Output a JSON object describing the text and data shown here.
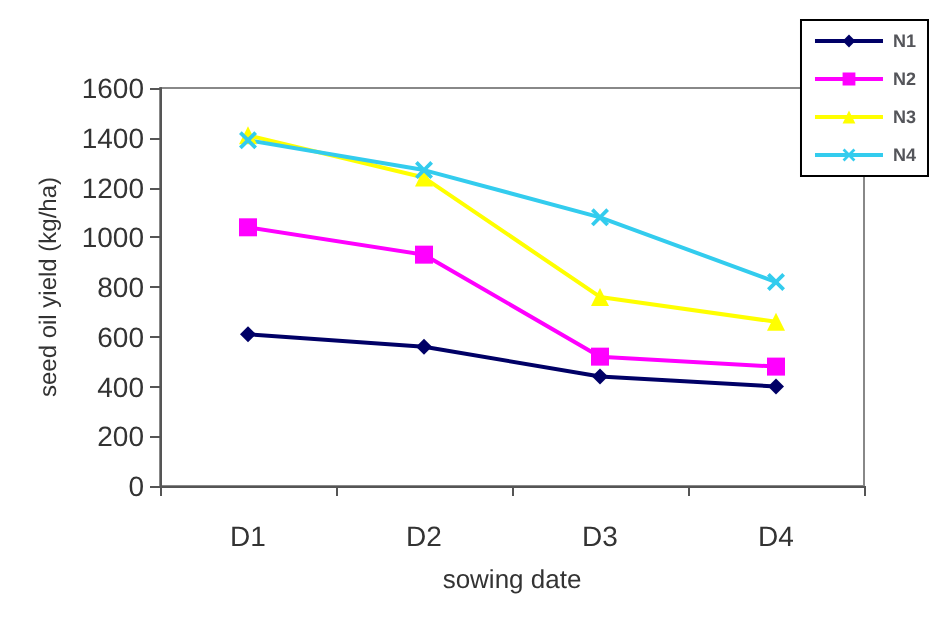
{
  "chart_data": {
    "type": "line",
    "xlabel": "sowing date",
    "ylabel": "seed oil yield (kg/ha)",
    "categories": [
      "D1",
      "D2",
      "D3",
      "D4"
    ],
    "series": [
      {
        "name": "N1",
        "color": "#000066",
        "marker": "diamond",
        "values": [
          610,
          560,
          440,
          400
        ]
      },
      {
        "name": "N2",
        "color": "#ff00ff",
        "marker": "square",
        "values": [
          1040,
          930,
          520,
          480
        ]
      },
      {
        "name": "N3",
        "color": "#ffff00",
        "marker": "triangle",
        "values": [
          1410,
          1240,
          760,
          660
        ]
      },
      {
        "name": "N4",
        "color": "#33ccee",
        "marker": "cross",
        "values": [
          1390,
          1270,
          1080,
          820
        ]
      }
    ],
    "ylim": [
      0,
      1600
    ],
    "yticks": [
      0,
      200,
      400,
      600,
      800,
      1000,
      1200,
      1400,
      1600
    ],
    "grid": false,
    "legend": "top right",
    "line_style": "solid"
  }
}
